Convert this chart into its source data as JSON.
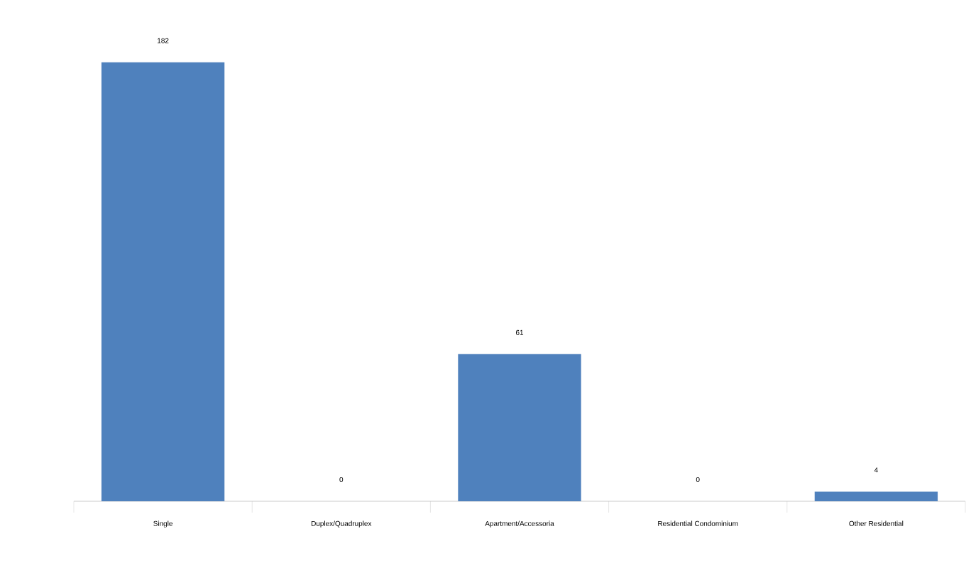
{
  "chart_data": {
    "type": "bar",
    "categories": [
      "Single",
      "Duplex/Quadruplex",
      "Apartment/Accessoria",
      "Residential Condominium",
      "Other Residential"
    ],
    "values": [
      182,
      0,
      61,
      0,
      4
    ],
    "color": "#4f81bd",
    "data_labels": true
  }
}
